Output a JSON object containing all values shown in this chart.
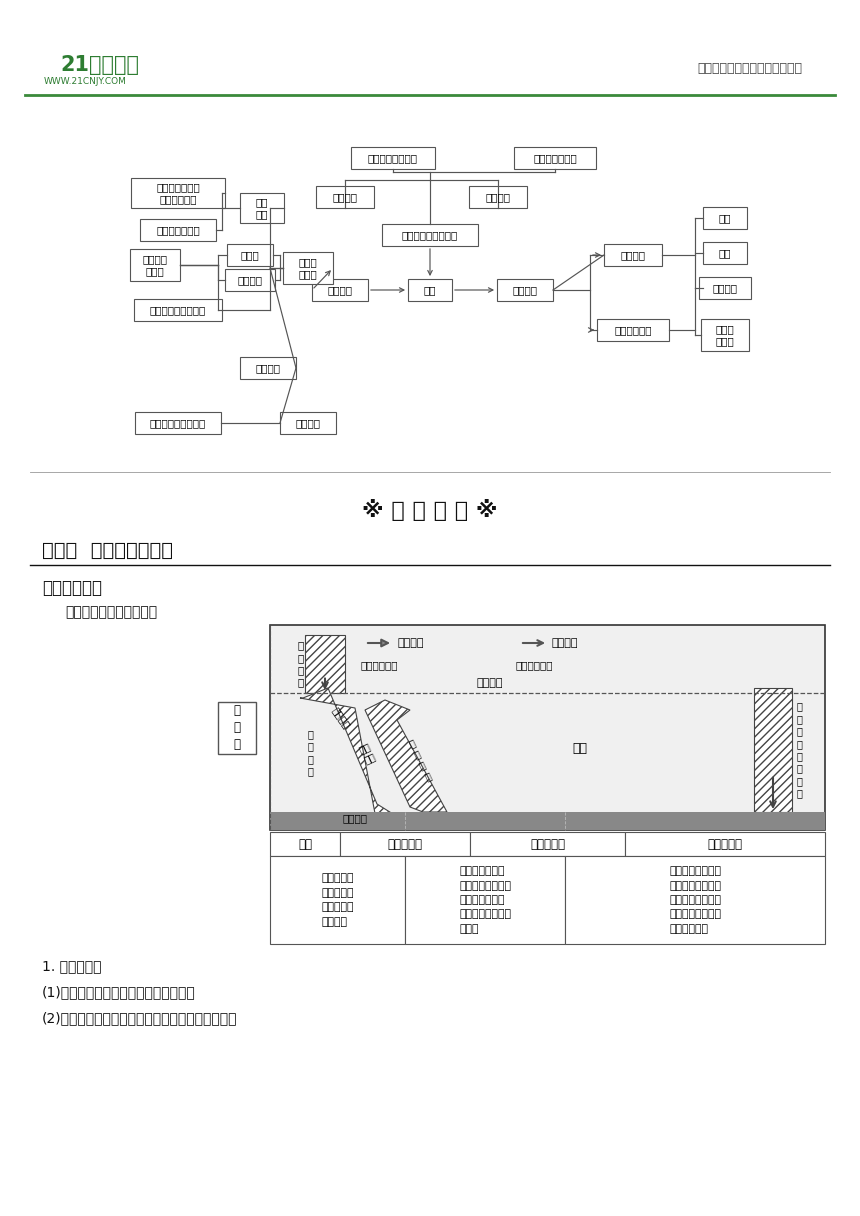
{
  "page_bg": "#ffffff",
  "header_line_color": "#4a9a4a",
  "header_right": "中小学教育资源及组卷应用平台",
  "section_title": "※ 考 点 梳 理 ※",
  "section1_title": "考点一  大气的受热过程",
  "knowledge_title": "【知识结构】",
  "sub_title1": "一、大气的受热过程原理",
  "body_text1": "1. 两个来源：",
  "body_text2": "(1)大气最重要的能量来源：太阳辐射。",
  "body_text3": "(2)近地面大气热量的主要、直接来源：地面辐射。"
}
